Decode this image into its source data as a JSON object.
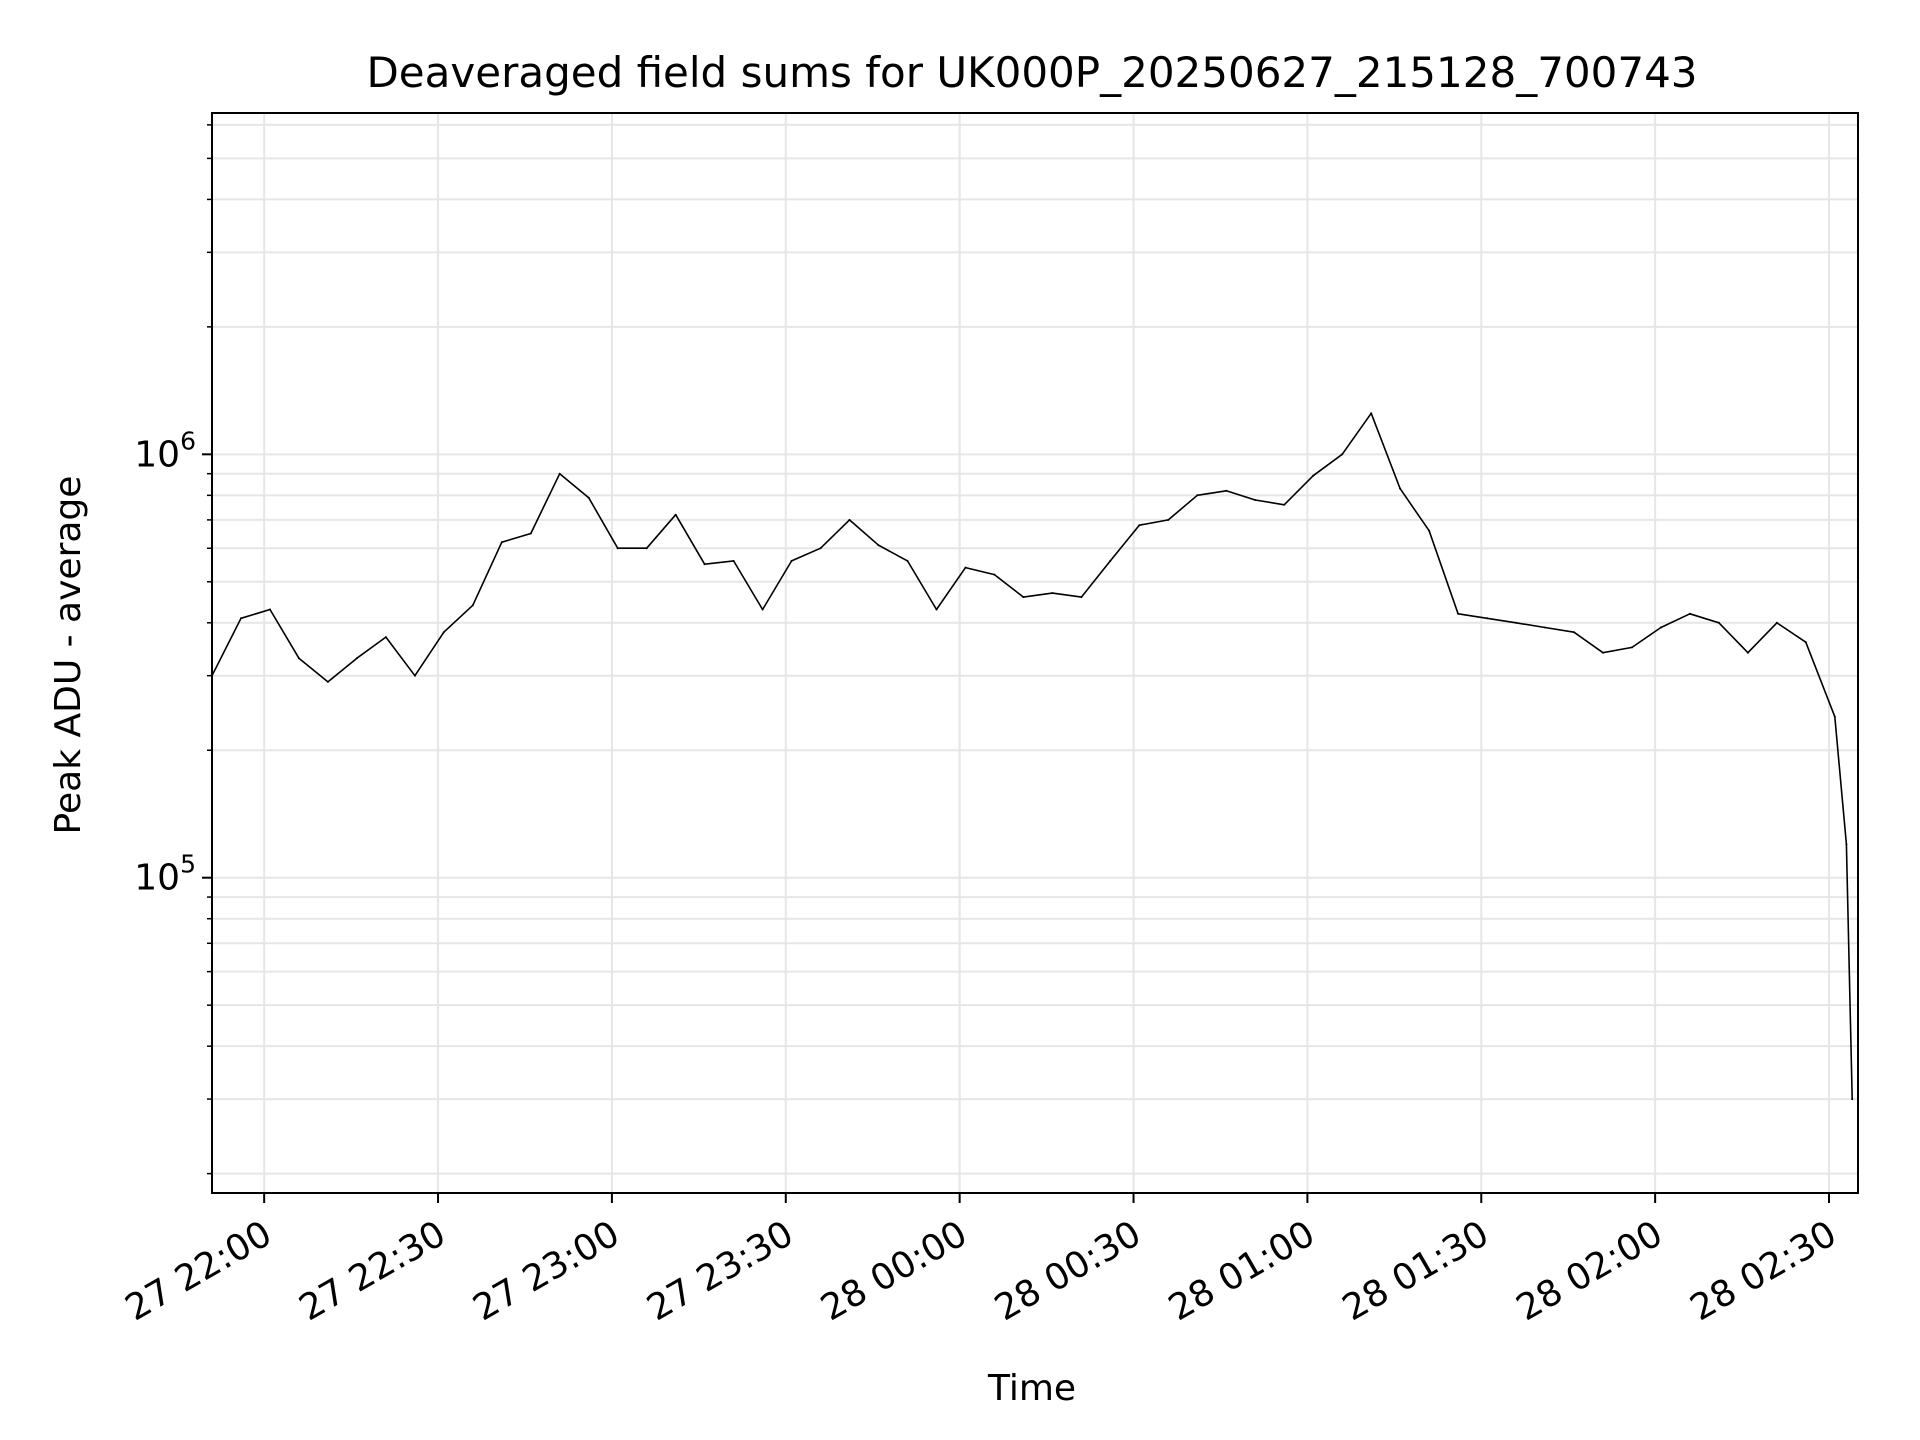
{
  "chart_data": {
    "type": "line",
    "title": "Deaveraged field sums for UK000P_20250627_215128_700743",
    "xlabel": "Time",
    "ylabel": "Peak ADU - average",
    "x_scale": "time",
    "y_scale": "log",
    "xlim": [
      "2025-06-27 21:51",
      "2025-06-28 02:35"
    ],
    "ylim": [
      18000,
      6400000
    ],
    "x_ticks": [
      {
        "label": "27 22:00",
        "t": "2025-06-27 22:00"
      },
      {
        "label": "27 22:30",
        "t": "2025-06-27 22:30"
      },
      {
        "label": "27 23:00",
        "t": "2025-06-27 23:00"
      },
      {
        "label": "27 23:30",
        "t": "2025-06-27 23:30"
      },
      {
        "label": "28 00:00",
        "t": "2025-06-28 00:00"
      },
      {
        "label": "28 00:30",
        "t": "2025-06-28 00:30"
      },
      {
        "label": "28 01:00",
        "t": "2025-06-28 01:00"
      },
      {
        "label": "28 01:30",
        "t": "2025-06-28 01:30"
      },
      {
        "label": "28 02:00",
        "t": "2025-06-28 02:00"
      },
      {
        "label": "28 02:30",
        "t": "2025-06-28 02:30"
      }
    ],
    "y_ticks": [
      {
        "base": "10",
        "exp": "5",
        "value": 100000
      },
      {
        "base": "10",
        "exp": "6",
        "value": 1000000
      }
    ],
    "grid": true,
    "line_color": "#000000",
    "grid_color": "#e6e6e6",
    "series": [
      {
        "x": [
          "2025-06-27 21:51",
          "2025-06-27 21:56",
          "2025-06-27 22:01",
          "2025-06-27 22:06",
          "2025-06-27 22:11",
          "2025-06-27 22:16",
          "2025-06-27 22:21",
          "2025-06-27 22:26",
          "2025-06-27 22:31",
          "2025-06-27 22:36",
          "2025-06-27 22:41",
          "2025-06-27 22:46",
          "2025-06-27 22:51",
          "2025-06-27 22:56",
          "2025-06-27 23:01",
          "2025-06-27 23:06",
          "2025-06-27 23:11",
          "2025-06-27 23:16",
          "2025-06-27 23:21",
          "2025-06-27 23:26",
          "2025-06-27 23:31",
          "2025-06-27 23:36",
          "2025-06-27 23:41",
          "2025-06-27 23:46",
          "2025-06-27 23:51",
          "2025-06-27 23:56",
          "2025-06-28 00:01",
          "2025-06-28 00:06",
          "2025-06-28 00:11",
          "2025-06-28 00:16",
          "2025-06-28 00:21",
          "2025-06-28 00:26",
          "2025-06-28 00:31",
          "2025-06-28 00:36",
          "2025-06-28 00:41",
          "2025-06-28 00:46",
          "2025-06-28 00:51",
          "2025-06-28 00:56",
          "2025-06-28 01:01",
          "2025-06-28 01:06",
          "2025-06-28 01:11",
          "2025-06-28 01:16",
          "2025-06-28 01:21",
          "2025-06-28 01:26",
          "2025-06-28 01:31",
          "2025-06-28 01:36",
          "2025-06-28 01:41",
          "2025-06-28 01:46",
          "2025-06-28 01:51",
          "2025-06-28 01:56",
          "2025-06-28 02:01",
          "2025-06-28 02:06",
          "2025-06-28 02:11",
          "2025-06-28 02:16",
          "2025-06-28 02:21",
          "2025-06-28 02:26",
          "2025-06-28 02:31",
          "2025-06-28 02:33",
          "2025-06-28 02:34"
        ],
        "y": [
          300000,
          410000,
          430000,
          330000,
          290000,
          330000,
          370000,
          300000,
          380000,
          440000,
          620000,
          650000,
          900000,
          790000,
          600000,
          600000,
          720000,
          550000,
          560000,
          430000,
          560000,
          600000,
          700000,
          610000,
          560000,
          430000,
          540000,
          520000,
          460000,
          470000,
          460000,
          560000,
          680000,
          700000,
          800000,
          820000,
          780000,
          760000,
          890000,
          1000000,
          1250000,
          830000,
          660000,
          420000,
          410000,
          400000,
          390000,
          380000,
          340000,
          350000,
          390000,
          420000,
          400000,
          340000,
          400000,
          360000,
          240000,
          120000,
          30000
        ]
      }
    ]
  }
}
